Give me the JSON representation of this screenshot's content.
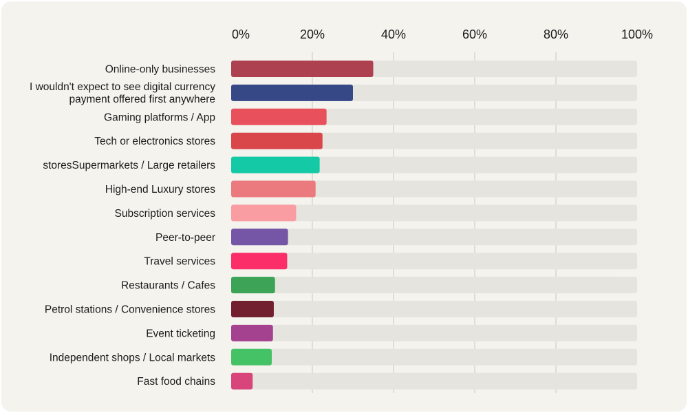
{
  "chart_data": {
    "type": "bar",
    "orientation": "horizontal",
    "title": "",
    "xlabel": "",
    "ylabel": "",
    "xlim": [
      0,
      100
    ],
    "grid": true,
    "tick_labels": [
      "0%",
      "20%",
      "40%",
      "60%",
      "80%",
      "100%"
    ],
    "tick_values": [
      0,
      20,
      40,
      60,
      80,
      100
    ],
    "track_color": "#e5e4de",
    "categories": [
      {
        "label": "Online-only businesses",
        "value": 35,
        "color": "#ad4150"
      },
      {
        "label": "I wouldn't expect to see digital currency payment offered first anywhere",
        "label_lines": [
          "I wouldn't expect to see digital currency",
          "payment offered first anywhere"
        ],
        "value": 30,
        "color": "#374887"
      },
      {
        "label": "Gaming platforms / App",
        "value": 23.5,
        "color": "#e8515b"
      },
      {
        "label": "Tech or electronics stores",
        "value": 22.5,
        "color": "#d9474a"
      },
      {
        "label": "storesSupermarkets / Large retailers",
        "value": 21.8,
        "color": "#14c9a5"
      },
      {
        "label": "High-end Luxury stores",
        "value": 20.8,
        "color": "#ea7a7e"
      },
      {
        "label": "Subscription services",
        "value": 16,
        "color": "#f99da2"
      },
      {
        "label": "Peer-to-peer",
        "value": 14,
        "color": "#7455a6"
      },
      {
        "label": "Travel services",
        "value": 13.8,
        "color": "#fb2e69"
      },
      {
        "label": "Restaurants / Cafes",
        "value": 10.8,
        "color": "#3ca357"
      },
      {
        "label": "Petrol stations / Convenience stores",
        "value": 10.5,
        "color": "#721f30"
      },
      {
        "label": "Event ticketing",
        "value": 10.3,
        "color": "#a4428f"
      },
      {
        "label": "Independent shops / Local markets",
        "value": 10,
        "color": "#45c266"
      },
      {
        "label": "Fast food chains",
        "value": 5.3,
        "color": "#d7457a"
      }
    ]
  }
}
